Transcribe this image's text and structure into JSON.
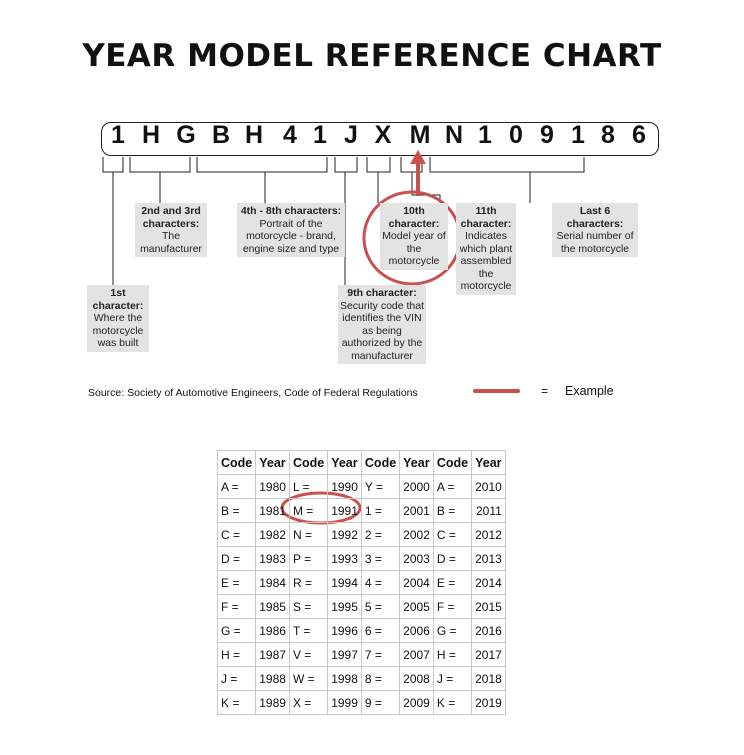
{
  "title": "YEAR MODEL REFERENCE CHART",
  "vin": [
    "1",
    "H",
    "G",
    "B",
    "H",
    "4",
    "1",
    "J",
    "X",
    "M",
    "N",
    "1",
    "0",
    "9",
    "1",
    "8",
    "6"
  ],
  "labels": {
    "first": {
      "heading": "1st character:",
      "text": "Where the motorcycle was built"
    },
    "second_third": {
      "heading": "2nd and 3rd characters:",
      "text": "The manufacturer"
    },
    "fourth_eighth": {
      "heading": "4th - 8th characters:",
      "text": "Portrait of the motorcycle - brand, engine size and type"
    },
    "ninth": {
      "heading": "9th character:",
      "text": "Security code that identifies the VIN as being authorized by the manufacturer"
    },
    "tenth": {
      "heading": "10th character:",
      "text": "Model year of the motorcycle"
    },
    "eleventh": {
      "heading": "11th character:",
      "text": "Indicates which plant assembled the motorcycle"
    },
    "last6": {
      "heading": "Last 6 characters:",
      "text": "Serial number of the motorcycle"
    }
  },
  "source": "Source:  Society of Automotive Engineers, Code of Federal Regulations",
  "legend": {
    "equals": "=",
    "label": "Example",
    "color": "#c9504c"
  },
  "table": {
    "headers": [
      "Code",
      "Year",
      "Code",
      "Year",
      "Code",
      "Year",
      "Code",
      "Year"
    ],
    "rows": [
      [
        "A =",
        "1980",
        "L =",
        "1990",
        "Y =",
        "2000",
        "A =",
        "2010"
      ],
      [
        "B =",
        "1981",
        "M =",
        "1991",
        "1 =",
        "2001",
        "B =",
        "2011"
      ],
      [
        "C =",
        "1982",
        "N =",
        "1992",
        "2 =",
        "2002",
        "C =",
        "2012"
      ],
      [
        "D =",
        "1983",
        "P =",
        "1993",
        "3 =",
        "2003",
        "D =",
        "2013"
      ],
      [
        "E =",
        "1984",
        "R =",
        "1994",
        "4 =",
        "2004",
        "E =",
        "2014"
      ],
      [
        "F =",
        "1985",
        "S =",
        "1995",
        "5 =",
        "2005",
        "F =",
        "2015"
      ],
      [
        "G =",
        "1986",
        "T =",
        "1996",
        "6 =",
        "2006",
        "G =",
        "2016"
      ],
      [
        "H =",
        "1987",
        "V =",
        "1997",
        "7 =",
        "2007",
        "H =",
        "2017"
      ],
      [
        "J =",
        "1988",
        "W =",
        "1998",
        "8 =",
        "2008",
        "J =",
        "2018"
      ],
      [
        "K =",
        "1989",
        "X =",
        "1999",
        "9 =",
        "2009",
        "K =",
        "2019"
      ]
    ]
  }
}
